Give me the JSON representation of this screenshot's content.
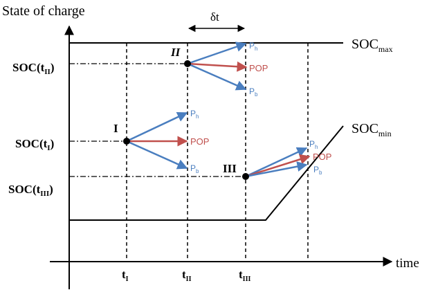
{
  "axes": {
    "y_label": "State of charge",
    "x_label": "time"
  },
  "limits": {
    "max_main": "SOC",
    "max_sub": "max",
    "min_main": "SOC",
    "min_sub": "min"
  },
  "interval": {
    "label": "δt"
  },
  "time_ticks": [
    {
      "main": "t",
      "sub": "I"
    },
    {
      "main": "t",
      "sub": "II"
    },
    {
      "main": "t",
      "sub": "III"
    }
  ],
  "soc_levels": [
    {
      "prefix": "SOC(t",
      "sub": "II",
      "suffix": ")"
    },
    {
      "prefix": "SOC(t",
      "sub": "I",
      "suffix": ")"
    },
    {
      "prefix": "SOC(t",
      "sub": "III",
      "suffix": ")"
    }
  ],
  "states": [
    "I",
    "II",
    "III"
  ],
  "arrow_labels": {
    "high_main": "P",
    "high_sub": "h",
    "pop": "POP",
    "low_main": "P",
    "low_sub": "b"
  },
  "colors": {
    "blue_arrow": "#4a7ebf",
    "red_arrow": "#c0504d",
    "line": "#000000"
  }
}
